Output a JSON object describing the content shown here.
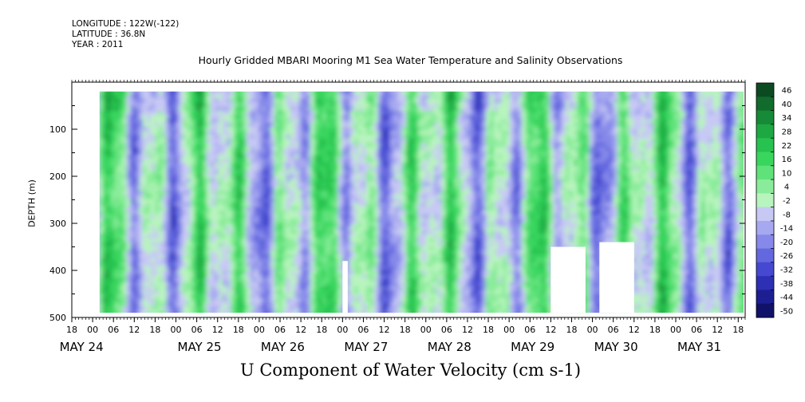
{
  "header": {
    "longitude": "LONGITUDE : 122W(-122)",
    "latitude": "LATITUDE : 36.8N",
    "year": "YEAR : 2011"
  },
  "chart_data": {
    "type": "heatmap",
    "title": "Hourly Gridded MBARI Mooring M1 Sea Water Temperature and Salinity Observations",
    "xlabel": "U Component of Water Velocity (cm s-1)",
    "ylabel": "DEPTH (m)",
    "ylim": [
      500,
      0
    ],
    "y_ticks": [
      100,
      200,
      300,
      400,
      500
    ],
    "x_hour_ticks": [
      "18",
      "00",
      "06",
      "12",
      "18",
      "00",
      "06",
      "12",
      "18",
      "00",
      "06",
      "12",
      "18",
      "00",
      "06",
      "12",
      "18",
      "00",
      "06",
      "12",
      "18",
      "00",
      "06",
      "12",
      "18",
      "00",
      "06",
      "12",
      "18",
      "00",
      "06",
      "12",
      "18"
    ],
    "x_date_labels": [
      "MAY 24",
      "MAY 25",
      "MAY 26",
      "MAY 27",
      "MAY 28",
      "MAY 29",
      "MAY 30",
      "MAY 31"
    ],
    "x_range": [
      "2011-05-23 18:00",
      "2011-05-31 20:00"
    ],
    "data_start": "2011-05-24 02:00",
    "depth_range": [
      20,
      490
    ],
    "colorbar": {
      "levels": [
        48,
        46,
        40,
        34,
        28,
        22,
        16,
        10,
        4,
        -2,
        -8,
        -14,
        -20,
        -26,
        -32,
        -38,
        -44,
        -50
      ],
      "labels": [
        "46",
        "40",
        "34",
        "28",
        "22",
        "16",
        "10",
        "4",
        "-2",
        "-8",
        "-14",
        "-20",
        "-26",
        "-32",
        "-38",
        "-44",
        "-50"
      ],
      "colors": [
        "#0c4a22",
        "#106b2c",
        "#168a36",
        "#1ea842",
        "#27c24f",
        "#39d65e",
        "#5fe27a",
        "#8aec9a",
        "#b8f4be",
        "#c7c9f4",
        "#a7a9f0",
        "#8689e9",
        "#6468df",
        "#4548d0",
        "#2d30b5",
        "#1c1e92",
        "#101168"
      ]
    },
    "missing_regions": [
      {
        "time": [
          "2011-05-27 00:00",
          "2011-05-27 01:30"
        ],
        "depth": [
          380,
          490
        ]
      },
      {
        "time": [
          "2011-05-29 12:00",
          "2011-05-29 22:00"
        ],
        "depth": [
          350,
          490
        ]
      },
      {
        "time": [
          "2011-05-30 02:00",
          "2011-05-30 12:00"
        ],
        "depth": [
          340,
          490
        ]
      }
    ]
  }
}
